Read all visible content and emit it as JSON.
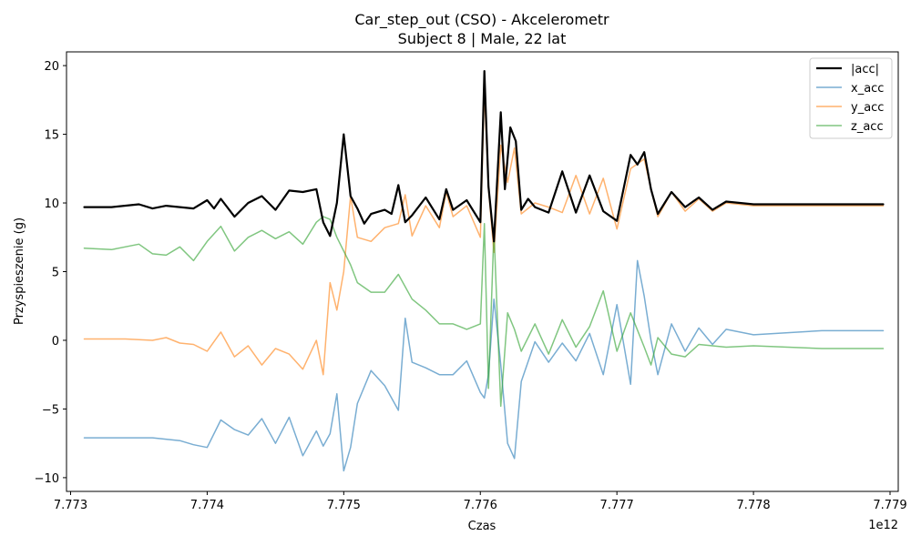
{
  "chart_data": {
    "type": "line",
    "title": "Car_step_out (CSO) - Akcelerometr",
    "subtitle": "Subject 8 | Male, 22 lat",
    "xlabel": "Czas",
    "ylabel": "Przyspieszenie (g)",
    "x_offset_label": "1e12",
    "xlim": [
      7.77297,
      7.77906
    ],
    "ylim": [
      -11,
      21
    ],
    "x_tick_values": [
      7.773,
      7.774,
      7.775,
      7.776,
      7.777,
      7.778,
      7.779
    ],
    "x_tick_labels": [
      "7.773",
      "7.774",
      "7.775",
      "7.776",
      "7.777",
      "7.778",
      "7.779"
    ],
    "y_tick_values": [
      -10,
      -5,
      0,
      5,
      10,
      15,
      20
    ],
    "y_tick_labels": [
      "−10",
      "−5",
      "0",
      "5",
      "10",
      "15",
      "20"
    ],
    "grid": false,
    "legend_position": "top-right",
    "series": [
      {
        "name": "|acc|",
        "color": "#000000",
        "width": 2.2,
        "alpha": 1,
        "x": [
          7.7731,
          7.7733,
          7.7735,
          7.7736,
          7.7737,
          7.7738,
          7.7739,
          7.774,
          7.77405,
          7.7741,
          7.7742,
          7.7743,
          7.7744,
          7.7745,
          7.7746,
          7.7747,
          7.7748,
          7.77485,
          7.7749,
          7.77495,
          7.775,
          7.77505,
          7.7751,
          7.77515,
          7.7752,
          7.7753,
          7.77535,
          7.7754,
          7.77545,
          7.7755,
          7.7756,
          7.7757,
          7.77575,
          7.7758,
          7.7759,
          7.776,
          7.77603,
          7.77606,
          7.7761,
          7.77615,
          7.77618,
          7.77622,
          7.77626,
          7.7763,
          7.77635,
          7.7764,
          7.7765,
          7.7766,
          7.7767,
          7.7768,
          7.7769,
          7.777,
          7.7771,
          7.77715,
          7.7772,
          7.77725,
          7.7773,
          7.7774,
          7.7775,
          7.7776,
          7.7777,
          7.7778,
          7.778,
          7.7785,
          7.77895
        ],
        "y": [
          9.7,
          9.7,
          9.9,
          9.6,
          9.8,
          9.7,
          9.6,
          10.2,
          9.6,
          10.3,
          9.0,
          10.0,
          10.5,
          9.5,
          10.9,
          10.8,
          11.0,
          8.6,
          7.6,
          10.0,
          15.0,
          10.5,
          9.6,
          8.5,
          9.2,
          9.5,
          9.2,
          11.3,
          8.6,
          9.1,
          10.4,
          8.8,
          11.0,
          9.5,
          10.2,
          8.6,
          19.6,
          11.2,
          7.2,
          16.6,
          11.0,
          15.5,
          14.5,
          9.5,
          10.3,
          9.7,
          9.3,
          12.3,
          9.3,
          12.0,
          9.4,
          8.7,
          13.5,
          12.8,
          13.7,
          11.0,
          9.2,
          10.8,
          9.7,
          10.4,
          9.5,
          10.1,
          9.9,
          9.9,
          9.9
        ]
      },
      {
        "name": "x_acc",
        "color": "#1f77b4",
        "width": 1.5,
        "alpha": 0.6,
        "x": [
          7.7731,
          7.7734,
          7.7736,
          7.7738,
          7.7739,
          7.774,
          7.7741,
          7.7742,
          7.7743,
          7.7744,
          7.7745,
          7.7746,
          7.7747,
          7.7748,
          7.77485,
          7.7749,
          7.77495,
          7.775,
          7.77505,
          7.7751,
          7.7752,
          7.7753,
          7.7754,
          7.77545,
          7.7755,
          7.7756,
          7.7757,
          7.7758,
          7.7759,
          7.776,
          7.77603,
          7.77606,
          7.7761,
          7.77615,
          7.7762,
          7.77625,
          7.7763,
          7.7764,
          7.7765,
          7.7766,
          7.7767,
          7.7768,
          7.7769,
          7.777,
          7.7771,
          7.77715,
          7.7772,
          7.77725,
          7.7773,
          7.7774,
          7.7775,
          7.7776,
          7.7777,
          7.7778,
          7.778,
          7.7785,
          7.77895
        ],
        "y": [
          -7.1,
          -7.1,
          -7.1,
          -7.3,
          -7.6,
          -7.8,
          -5.8,
          -6.5,
          -6.9,
          -5.7,
          -7.5,
          -5.6,
          -8.4,
          -6.6,
          -7.7,
          -6.8,
          -3.9,
          -9.5,
          -7.8,
          -4.6,
          -2.2,
          -3.3,
          -5.1,
          1.6,
          -1.6,
          -2.0,
          -2.5,
          -2.5,
          -1.5,
          -3.8,
          -4.2,
          -2.5,
          3.0,
          -1.8,
          -7.5,
          -8.6,
          -3.0,
          -0.1,
          -1.6,
          -0.2,
          -1.5,
          0.5,
          -2.5,
          2.6,
          -3.2,
          5.8,
          3.2,
          0.0,
          -2.5,
          1.2,
          -0.8,
          0.9,
          -0.3,
          0.8,
          0.4,
          0.7,
          0.7
        ]
      },
      {
        "name": "y_acc",
        "color": "#ff7f0e",
        "width": 1.5,
        "alpha": 0.6,
        "x": [
          7.7731,
          7.7734,
          7.7736,
          7.7737,
          7.7738,
          7.7739,
          7.774,
          7.7741,
          7.7742,
          7.7743,
          7.7744,
          7.7745,
          7.7746,
          7.7747,
          7.7748,
          7.77485,
          7.7749,
          7.77495,
          7.775,
          7.77505,
          7.7751,
          7.7752,
          7.7753,
          7.7754,
          7.77545,
          7.7755,
          7.7756,
          7.7757,
          7.77575,
          7.7758,
          7.7759,
          7.776,
          7.77603,
          7.77606,
          7.7761,
          7.77615,
          7.7762,
          7.77625,
          7.7763,
          7.7764,
          7.7765,
          7.7766,
          7.7767,
          7.7768,
          7.7769,
          7.777,
          7.7771,
          7.7772,
          7.77725,
          7.7773,
          7.7774,
          7.7775,
          7.7776,
          7.7777,
          7.7778,
          7.778,
          7.7785,
          7.77895
        ],
        "y": [
          0.1,
          0.1,
          0.0,
          0.2,
          -0.2,
          -0.3,
          -0.8,
          0.6,
          -1.2,
          -0.4,
          -1.8,
          -0.6,
          -1.0,
          -2.1,
          0.0,
          -2.5,
          4.2,
          2.2,
          5.0,
          10.5,
          7.5,
          7.2,
          8.2,
          8.5,
          10.6,
          7.6,
          9.8,
          8.2,
          10.8,
          9.0,
          9.8,
          7.5,
          18.2,
          11.0,
          6.4,
          14.2,
          11.5,
          14.0,
          9.2,
          10.0,
          9.7,
          9.3,
          12.0,
          9.2,
          11.8,
          8.1,
          12.5,
          13.2,
          11.0,
          9.0,
          10.8,
          9.4,
          10.3,
          9.4,
          10.0,
          9.8,
          9.8,
          9.8
        ]
      },
      {
        "name": "z_acc",
        "color": "#2ca02c",
        "width": 1.5,
        "alpha": 0.6,
        "x": [
          7.7731,
          7.7733,
          7.7735,
          7.7736,
          7.7737,
          7.7738,
          7.7739,
          7.774,
          7.7741,
          7.7742,
          7.7743,
          7.7744,
          7.7745,
          7.7746,
          7.7747,
          7.7748,
          7.77485,
          7.7749,
          7.77495,
          7.775,
          7.77505,
          7.7751,
          7.7752,
          7.7753,
          7.7754,
          7.7755,
          7.7756,
          7.7757,
          7.7758,
          7.7759,
          7.776,
          7.77603,
          7.77606,
          7.7761,
          7.77615,
          7.7762,
          7.77625,
          7.7763,
          7.7764,
          7.7765,
          7.7766,
          7.7767,
          7.7768,
          7.7769,
          7.777,
          7.7771,
          7.7772,
          7.77725,
          7.7773,
          7.7774,
          7.7775,
          7.7776,
          7.7778,
          7.778,
          7.7785,
          7.77895
        ],
        "y": [
          6.7,
          6.6,
          7.0,
          6.3,
          6.2,
          6.8,
          5.8,
          7.2,
          8.3,
          6.5,
          7.5,
          8.0,
          7.4,
          7.9,
          7.0,
          8.6,
          9.0,
          8.8,
          7.5,
          6.5,
          5.5,
          4.2,
          3.5,
          3.5,
          4.8,
          3.0,
          2.2,
          1.2,
          1.2,
          0.8,
          1.2,
          8.5,
          -3.5,
          8.0,
          -4.8,
          2.0,
          0.8,
          -0.8,
          1.2,
          -1.0,
          1.5,
          -0.5,
          1.0,
          3.6,
          -0.8,
          2.0,
          -0.5,
          -1.8,
          0.2,
          -1.0,
          -1.2,
          -0.3,
          -0.5,
          -0.4,
          -0.6,
          -0.6
        ]
      }
    ]
  }
}
